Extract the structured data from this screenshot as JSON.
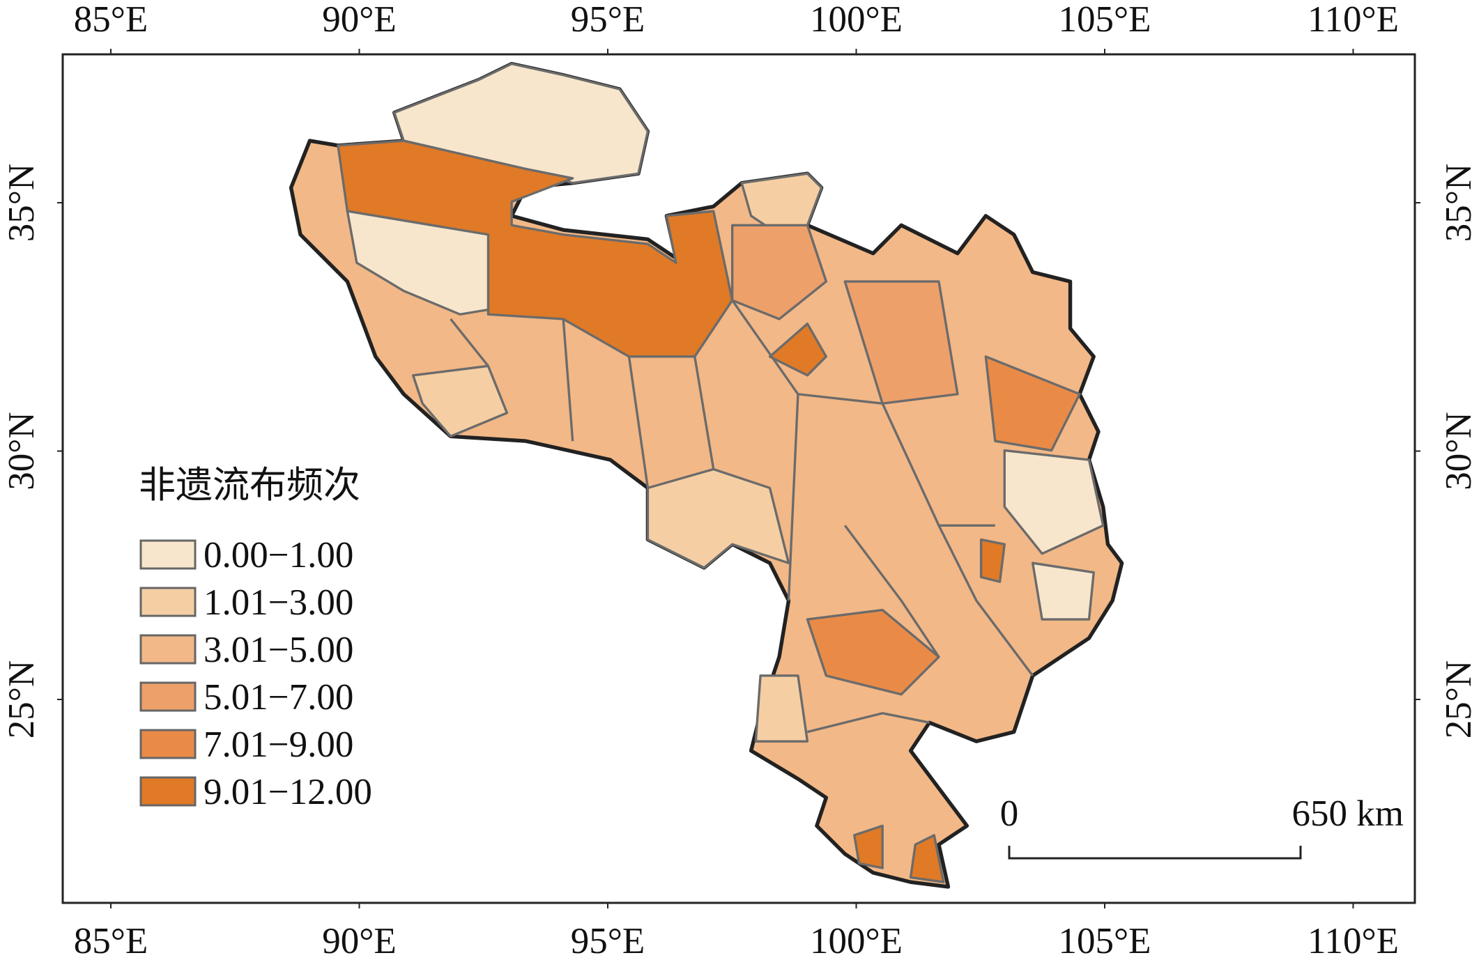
{
  "map": {
    "lon_ticks": [
      {
        "value": 85,
        "label": "85°E"
      },
      {
        "value": 90,
        "label": "90°E"
      },
      {
        "value": 95,
        "label": "95°E"
      },
      {
        "value": 100,
        "label": "100°E"
      },
      {
        "value": 105,
        "label": "105°E"
      },
      {
        "value": 110,
        "label": "110°E"
      }
    ],
    "lat_ticks": [
      {
        "value": 35,
        "label": "35°N"
      },
      {
        "value": 30,
        "label": "30°N"
      },
      {
        "value": 25,
        "label": "25°N"
      }
    ],
    "legend": {
      "title": "非遗流布频次",
      "items": [
        {
          "label": "0.00−1.00",
          "color": "#f8e6cc"
        },
        {
          "label": "1.01−3.00",
          "color": "#f5cfa3"
        },
        {
          "label": "3.01−5.00",
          "color": "#f2b887"
        },
        {
          "label": "5.01−7.00",
          "color": "#eea06a"
        },
        {
          "label": "7.01−9.00",
          "color": "#e98b47"
        },
        {
          "label": "9.01−12.00",
          "color": "#e07a26"
        }
      ]
    },
    "scale_bar": {
      "start": "0",
      "end": "650 km"
    }
  }
}
